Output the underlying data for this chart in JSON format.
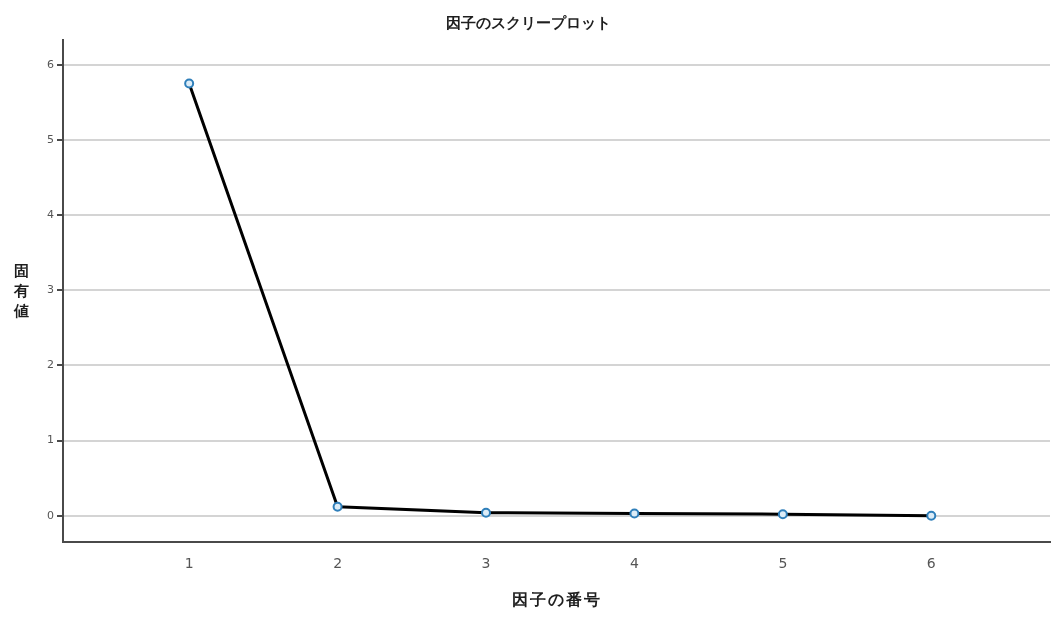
{
  "chart_data": {
    "type": "line",
    "title": "因子のスクリープロット",
    "xlabel": "因子の番号",
    "ylabel": "固有値",
    "x": [
      1,
      2,
      3,
      4,
      5,
      6
    ],
    "series": [
      {
        "color": "#000000",
        "colors": [
          "#2f7fba",
          "#2f7fba",
          "#2f7fba",
          "#2f7fba",
          "#2f7fba",
          "#2f7fba"
        ],
        "values": [
          5.75,
          0.12,
          0.04,
          0.03,
          0.02,
          0.0
        ]
      }
    ],
    "xlim": [
      0.15,
      6.8
    ],
    "xticks": [
      1,
      2,
      3,
      4,
      5,
      6
    ],
    "ylim": [
      -0.35,
      6.33
    ],
    "yticks": [
      0,
      1,
      2,
      3,
      4,
      5,
      6
    ],
    "grid": "y",
    "marker": "circle",
    "line_style": "solid"
  }
}
